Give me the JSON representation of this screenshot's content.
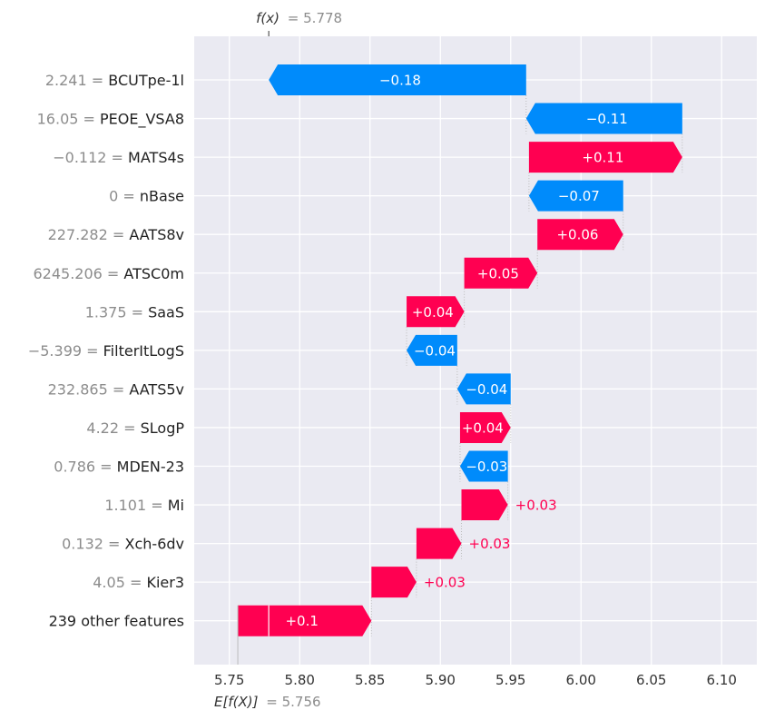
{
  "chart_data": {
    "type": "waterfall",
    "fx_label": "f(x)",
    "fx_value_text": "= 5.778",
    "fx": 5.778,
    "efx_label": "E[f(X)]",
    "efx_value_text": "= 5.756",
    "efx": 5.756,
    "xlim": [
      5.725,
      6.125
    ],
    "xticks": [
      "5.75",
      "5.80",
      "5.85",
      "5.90",
      "5.95",
      "6.00",
      "6.05",
      "6.10"
    ],
    "colors": {
      "positive": "#ff0051",
      "negative": "#008bfb",
      "background": "#eaeaf2"
    },
    "features": [
      {
        "value_text": "2.241 =",
        "name": "BCUTpe-1l",
        "start": 5.961,
        "end": 5.778,
        "label": "−0.18"
      },
      {
        "value_text": "16.05 =",
        "name": "PEOE_VSA8",
        "start": 6.072,
        "end": 5.961,
        "label": "−0.11"
      },
      {
        "value_text": "−0.112 =",
        "name": "MATS4s",
        "start": 5.963,
        "end": 6.072,
        "label": "+0.11"
      },
      {
        "value_text": "0 =",
        "name": "nBase",
        "start": 6.03,
        "end": 5.963,
        "label": "−0.07"
      },
      {
        "value_text": "227.282 =",
        "name": "AATS8v",
        "start": 5.969,
        "end": 6.03,
        "label": "+0.06"
      },
      {
        "value_text": "6245.206 =",
        "name": "ATSC0m",
        "start": 5.917,
        "end": 5.969,
        "label": "+0.05"
      },
      {
        "value_text": "1.375 =",
        "name": "SaaS",
        "start": 5.876,
        "end": 5.917,
        "label": "+0.04"
      },
      {
        "value_text": "−5.399 =",
        "name": "FilterItLogS",
        "start": 5.912,
        "end": 5.876,
        "label": "−0.04"
      },
      {
        "value_text": "232.865 =",
        "name": "AATS5v",
        "start": 5.95,
        "end": 5.912,
        "label": "−0.04"
      },
      {
        "value_text": "4.22 =",
        "name": "SLogP",
        "start": 5.914,
        "end": 5.95,
        "label": "+0.04"
      },
      {
        "value_text": "0.786 =",
        "name": "MDEN-23",
        "start": 5.948,
        "end": 5.914,
        "label": "−0.03"
      },
      {
        "value_text": "1.101 =",
        "name": "Mi",
        "start": 5.915,
        "end": 5.948,
        "label": "+0.03"
      },
      {
        "value_text": "0.132 =",
        "name": "Xch-6dv",
        "start": 5.883,
        "end": 5.915,
        "label": "+0.03"
      },
      {
        "value_text": "4.05 =",
        "name": "Kier3",
        "start": 5.851,
        "end": 5.883,
        "label": "+0.03"
      },
      {
        "value_text": "",
        "name": "239 other features",
        "start": 5.756,
        "end": 5.851,
        "label": "+0.1"
      }
    ]
  }
}
